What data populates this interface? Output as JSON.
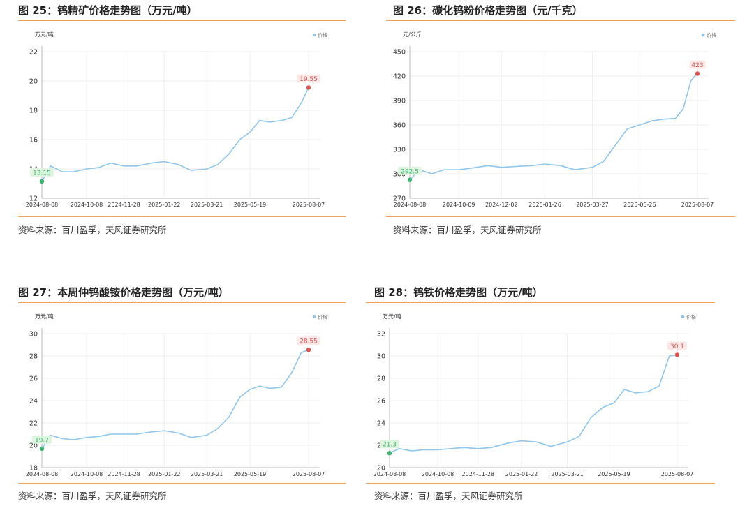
{
  "chart_data": [
    {
      "type": "line",
      "title": "图 25：钨精矿价格走势图（万元/吨）",
      "ylabel": "万元/吨",
      "legend": "价格",
      "legend_position": "top-right",
      "source": "资料来源：百川盈孚，天风证券研究所",
      "ylim": [
        12,
        22
      ],
      "yticks": [
        12,
        14,
        16,
        18,
        20,
        22
      ],
      "xticks": [
        "2024-08-08",
        "2024-10-08",
        "2024-11-28",
        "2025-01-22",
        "2025-03-21",
        "2025-05-19",
        "2025-08-07"
      ],
      "grid": true,
      "series": [
        {
          "x": [
            "2024-08-08",
            "2024-08-20",
            "2024-09-05",
            "2024-09-20",
            "2024-10-08",
            "2024-10-25",
            "2024-11-10",
            "2024-11-28",
            "2024-12-15",
            "2025-01-05",
            "2025-01-22",
            "2025-02-10",
            "2025-02-28",
            "2025-03-21",
            "2025-04-05",
            "2025-04-20",
            "2025-05-05",
            "2025-05-19",
            "2025-06-01",
            "2025-06-15",
            "2025-07-01",
            "2025-07-15",
            "2025-07-28",
            "2025-08-07"
          ],
          "values": [
            13.15,
            14.2,
            13.8,
            13.8,
            14.0,
            14.1,
            14.4,
            14.2,
            14.2,
            14.4,
            14.5,
            14.3,
            13.9,
            14.0,
            14.3,
            15.0,
            16.0,
            16.5,
            17.3,
            17.2,
            17.3,
            17.5,
            18.5,
            19.55
          ]
        }
      ],
      "annotations": [
        {
          "text": "13.15",
          "x": "2024-08-08",
          "y": 13.15,
          "kind": "min"
        },
        {
          "text": "19.55",
          "x": "2025-08-07",
          "y": 19.55,
          "kind": "max"
        }
      ]
    },
    {
      "type": "line",
      "title": "图 26：碳化钨粉价格走势图（元/千克）",
      "ylabel": "元/公斤",
      "legend": "价格",
      "legend_position": "top-right",
      "source": "资料来源：百川盈孚，天风证券研究所",
      "ylim": [
        270,
        450
      ],
      "yticks": [
        270,
        300,
        330,
        360,
        390,
        420,
        450
      ],
      "xticks": [
        "2024-08-08",
        "2024-10-09",
        "2024-12-02",
        "2025-01-26",
        "2025-03-27",
        "2025-05-26",
        "2025-08-07"
      ],
      "grid": true,
      "series": [
        {
          "x": [
            "2024-08-08",
            "2024-08-20",
            "2024-09-05",
            "2024-09-20",
            "2024-10-09",
            "2024-10-25",
            "2024-11-15",
            "2024-12-02",
            "2024-12-20",
            "2025-01-10",
            "2025-01-26",
            "2025-02-15",
            "2025-03-05",
            "2025-03-27",
            "2025-04-10",
            "2025-04-25",
            "2025-05-10",
            "2025-05-26",
            "2025-06-10",
            "2025-06-25",
            "2025-07-10",
            "2025-07-20",
            "2025-07-30",
            "2025-08-07"
          ],
          "values": [
            292.5,
            305,
            300,
            305,
            305,
            307,
            310,
            308,
            309,
            310,
            312,
            310,
            305,
            308,
            315,
            335,
            355,
            360,
            365,
            367,
            368,
            380,
            415,
            423
          ]
        }
      ],
      "annotations": [
        {
          "text": "292.5",
          "x": "2024-08-08",
          "y": 292.5,
          "kind": "min"
        },
        {
          "text": "423",
          "x": "2025-08-07",
          "y": 423,
          "kind": "max"
        }
      ]
    },
    {
      "type": "line",
      "title": "图 27：本周仲钨酸铵价格走势图（万元/吨）",
      "ylabel": "万元/吨",
      "legend": "价格",
      "legend_position": "top-right",
      "source": "资料来源：百川盈孚，天风证券研究所",
      "ylim": [
        18,
        30
      ],
      "yticks": [
        18,
        20,
        22,
        24,
        26,
        28,
        30
      ],
      "xticks": [
        "2024-08-08",
        "2024-10-08",
        "2024-11-28",
        "2025-01-22",
        "2025-03-21",
        "2025-05-19",
        "2025-08-07"
      ],
      "grid": true,
      "series": [
        {
          "x": [
            "2024-08-08",
            "2024-08-20",
            "2024-09-05",
            "2024-09-20",
            "2024-10-08",
            "2024-10-25",
            "2024-11-10",
            "2024-11-28",
            "2024-12-15",
            "2025-01-05",
            "2025-01-22",
            "2025-02-10",
            "2025-02-28",
            "2025-03-21",
            "2025-04-05",
            "2025-04-20",
            "2025-05-05",
            "2025-05-19",
            "2025-06-01",
            "2025-06-15",
            "2025-07-01",
            "2025-07-15",
            "2025-07-28",
            "2025-08-07"
          ],
          "values": [
            19.7,
            20.9,
            20.6,
            20.5,
            20.7,
            20.8,
            21.0,
            21.0,
            21.0,
            21.2,
            21.3,
            21.1,
            20.7,
            20.9,
            21.5,
            22.5,
            24.3,
            25.0,
            25.3,
            25.1,
            25.2,
            26.5,
            28.3,
            28.55
          ]
        }
      ],
      "annotations": [
        {
          "text": "19.7",
          "x": "2024-08-08",
          "y": 19.7,
          "kind": "min"
        },
        {
          "text": "28.55",
          "x": "2025-08-07",
          "y": 28.55,
          "kind": "max"
        }
      ]
    },
    {
      "type": "line",
      "title": "图 28：钨铁价格走势图（万元/吨）",
      "ylabel": "万元/吨",
      "legend": "价格",
      "legend_position": "top-right",
      "source": "资料来源：百川盈孚，天风证券研究所",
      "ylim": [
        20,
        32
      ],
      "yticks": [
        20,
        22,
        24,
        26,
        28,
        30,
        32
      ],
      "xticks": [
        "2024-08-08",
        "2024-10-08",
        "2024-11-28",
        "2025-01-22",
        "2025-03-21",
        "2025-05-19",
        "2025-08-07"
      ],
      "grid": true,
      "series": [
        {
          "x": [
            "2024-08-08",
            "2024-08-20",
            "2024-09-05",
            "2024-09-20",
            "2024-10-08",
            "2024-10-25",
            "2024-11-10",
            "2024-11-28",
            "2024-12-15",
            "2025-01-05",
            "2025-01-22",
            "2025-02-10",
            "2025-02-28",
            "2025-03-21",
            "2025-04-05",
            "2025-04-20",
            "2025-05-05",
            "2025-05-19",
            "2025-06-01",
            "2025-06-15",
            "2025-07-01",
            "2025-07-15",
            "2025-07-28",
            "2025-08-07"
          ],
          "values": [
            21.3,
            21.7,
            21.5,
            21.6,
            21.6,
            21.7,
            21.8,
            21.7,
            21.8,
            22.2,
            22.4,
            22.3,
            21.9,
            22.3,
            22.8,
            24.5,
            25.4,
            25.8,
            27.0,
            26.7,
            26.8,
            27.3,
            30.0,
            30.1
          ]
        }
      ],
      "annotations": [
        {
          "text": "21.3",
          "x": "2024-08-08",
          "y": 21.3,
          "kind": "min"
        },
        {
          "text": "30.1",
          "x": "2025-08-07",
          "y": 30.1,
          "kind": "max"
        }
      ]
    }
  ],
  "colors": {
    "line": "#8fc6ec",
    "accent_rule": "#f0a35e",
    "max_marker": "#d9534f",
    "min_marker": "#3cb371"
  }
}
